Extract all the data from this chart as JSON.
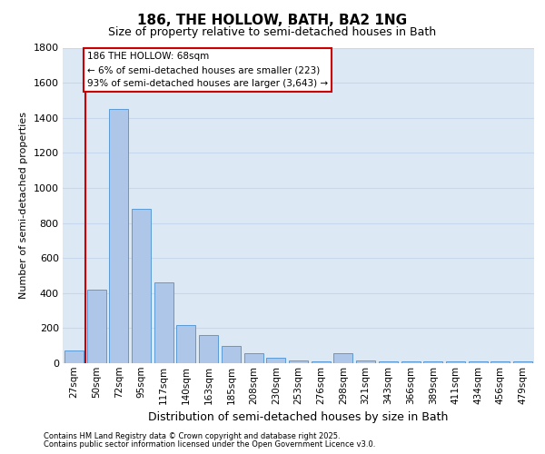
{
  "title": "186, THE HOLLOW, BATH, BA2 1NG",
  "subtitle": "Size of property relative to semi-detached houses in Bath",
  "xlabel": "Distribution of semi-detached houses by size in Bath",
  "ylabel": "Number of semi-detached properties",
  "footnote1": "Contains HM Land Registry data © Crown copyright and database right 2025.",
  "footnote2": "Contains public sector information licensed under the Open Government Licence v3.0.",
  "categories": [
    "27sqm",
    "50sqm",
    "72sqm",
    "95sqm",
    "117sqm",
    "140sqm",
    "163sqm",
    "185sqm",
    "208sqm",
    "230sqm",
    "253sqm",
    "276sqm",
    "298sqm",
    "321sqm",
    "343sqm",
    "366sqm",
    "389sqm",
    "411sqm",
    "434sqm",
    "456sqm",
    "479sqm"
  ],
  "bar_values": [
    75,
    420,
    1450,
    880,
    460,
    215,
    160,
    100,
    55,
    30,
    18,
    12,
    55,
    15,
    10,
    10,
    10,
    8,
    8,
    8,
    10
  ],
  "bar_color": "#aec6e8",
  "bar_edge_color": "#5b9bd5",
  "vline_x": 0.5,
  "vline_color": "#cc0000",
  "annotation_line1": "186 THE HOLLOW: 68sqm",
  "annotation_line2": "← 6% of semi-detached houses are smaller (223)",
  "annotation_line3": "93% of semi-detached houses are larger (3,643) →",
  "annotation_box_color": "#cc0000",
  "ylim_max": 1800,
  "background_color": "#dde8f5",
  "grid_color": "#c8d8ec",
  "yticks": [
    0,
    200,
    400,
    600,
    800,
    1000,
    1200,
    1400,
    1600,
    1800
  ]
}
